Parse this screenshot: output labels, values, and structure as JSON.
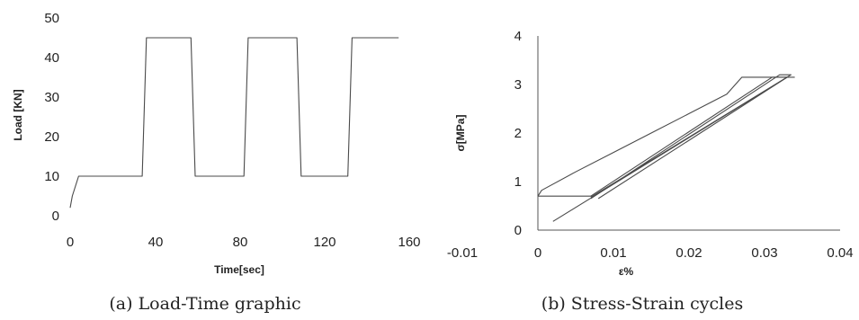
{
  "chart_data": [
    {
      "type": "line",
      "xlabel": "Time[sec]",
      "ylabel": "Load [KN]",
      "xlim": [
        0,
        160
      ],
      "ylim": [
        0,
        50
      ],
      "x_ticks": [
        "0",
        "40",
        "80",
        "120",
        "160"
      ],
      "y_ticks": [
        "0",
        "10",
        "20",
        "30",
        "40",
        "50"
      ],
      "caption": "(a) Load-Time graphic",
      "series": [
        {
          "x": [
            0,
            1,
            4,
            34,
            36,
            57,
            59,
            82,
            84,
            107,
            109,
            131,
            133,
            155
          ],
          "y": [
            2,
            5,
            10,
            10,
            45,
            45,
            10,
            10,
            45,
            45,
            10,
            10,
            45,
            45
          ]
        }
      ]
    },
    {
      "type": "line",
      "xlabel": "ε%",
      "ylabel": "σ[MPa]",
      "xlim": [
        -0.01,
        0.04
      ],
      "ylim": [
        0,
        4
      ],
      "x_ticks": [
        "-0.01",
        "0",
        "0.01",
        "0.02",
        "0.03",
        "0.04"
      ],
      "y_ticks": [
        "0",
        "1",
        "2",
        "3",
        "4"
      ],
      "caption": "(b) Stress-Strain cycles",
      "series": [
        {
          "x": [
            0,
            0.0005,
            0.005,
            0.01,
            0.015,
            0.02,
            0.025,
            0.027,
            0.031,
            0.033
          ],
          "y": [
            0.7,
            0.82,
            1.2,
            1.6,
            2.0,
            2.4,
            2.8,
            3.15,
            3.15,
            3.15
          ]
        },
        {
          "x": [
            0,
            0.007,
            0.031,
            0.033,
            0.008
          ],
          "y": [
            0.7,
            0.7,
            3.15,
            3.15,
            0.65
          ]
        },
        {
          "x": [
            0.007,
            0.032,
            0.0335,
            0.007
          ],
          "y": [
            0.65,
            3.2,
            3.2,
            0.68
          ]
        },
        {
          "x": [
            0.002,
            0.033,
            0.034
          ],
          "y": [
            0.18,
            3.15,
            3.15
          ]
        }
      ]
    }
  ]
}
